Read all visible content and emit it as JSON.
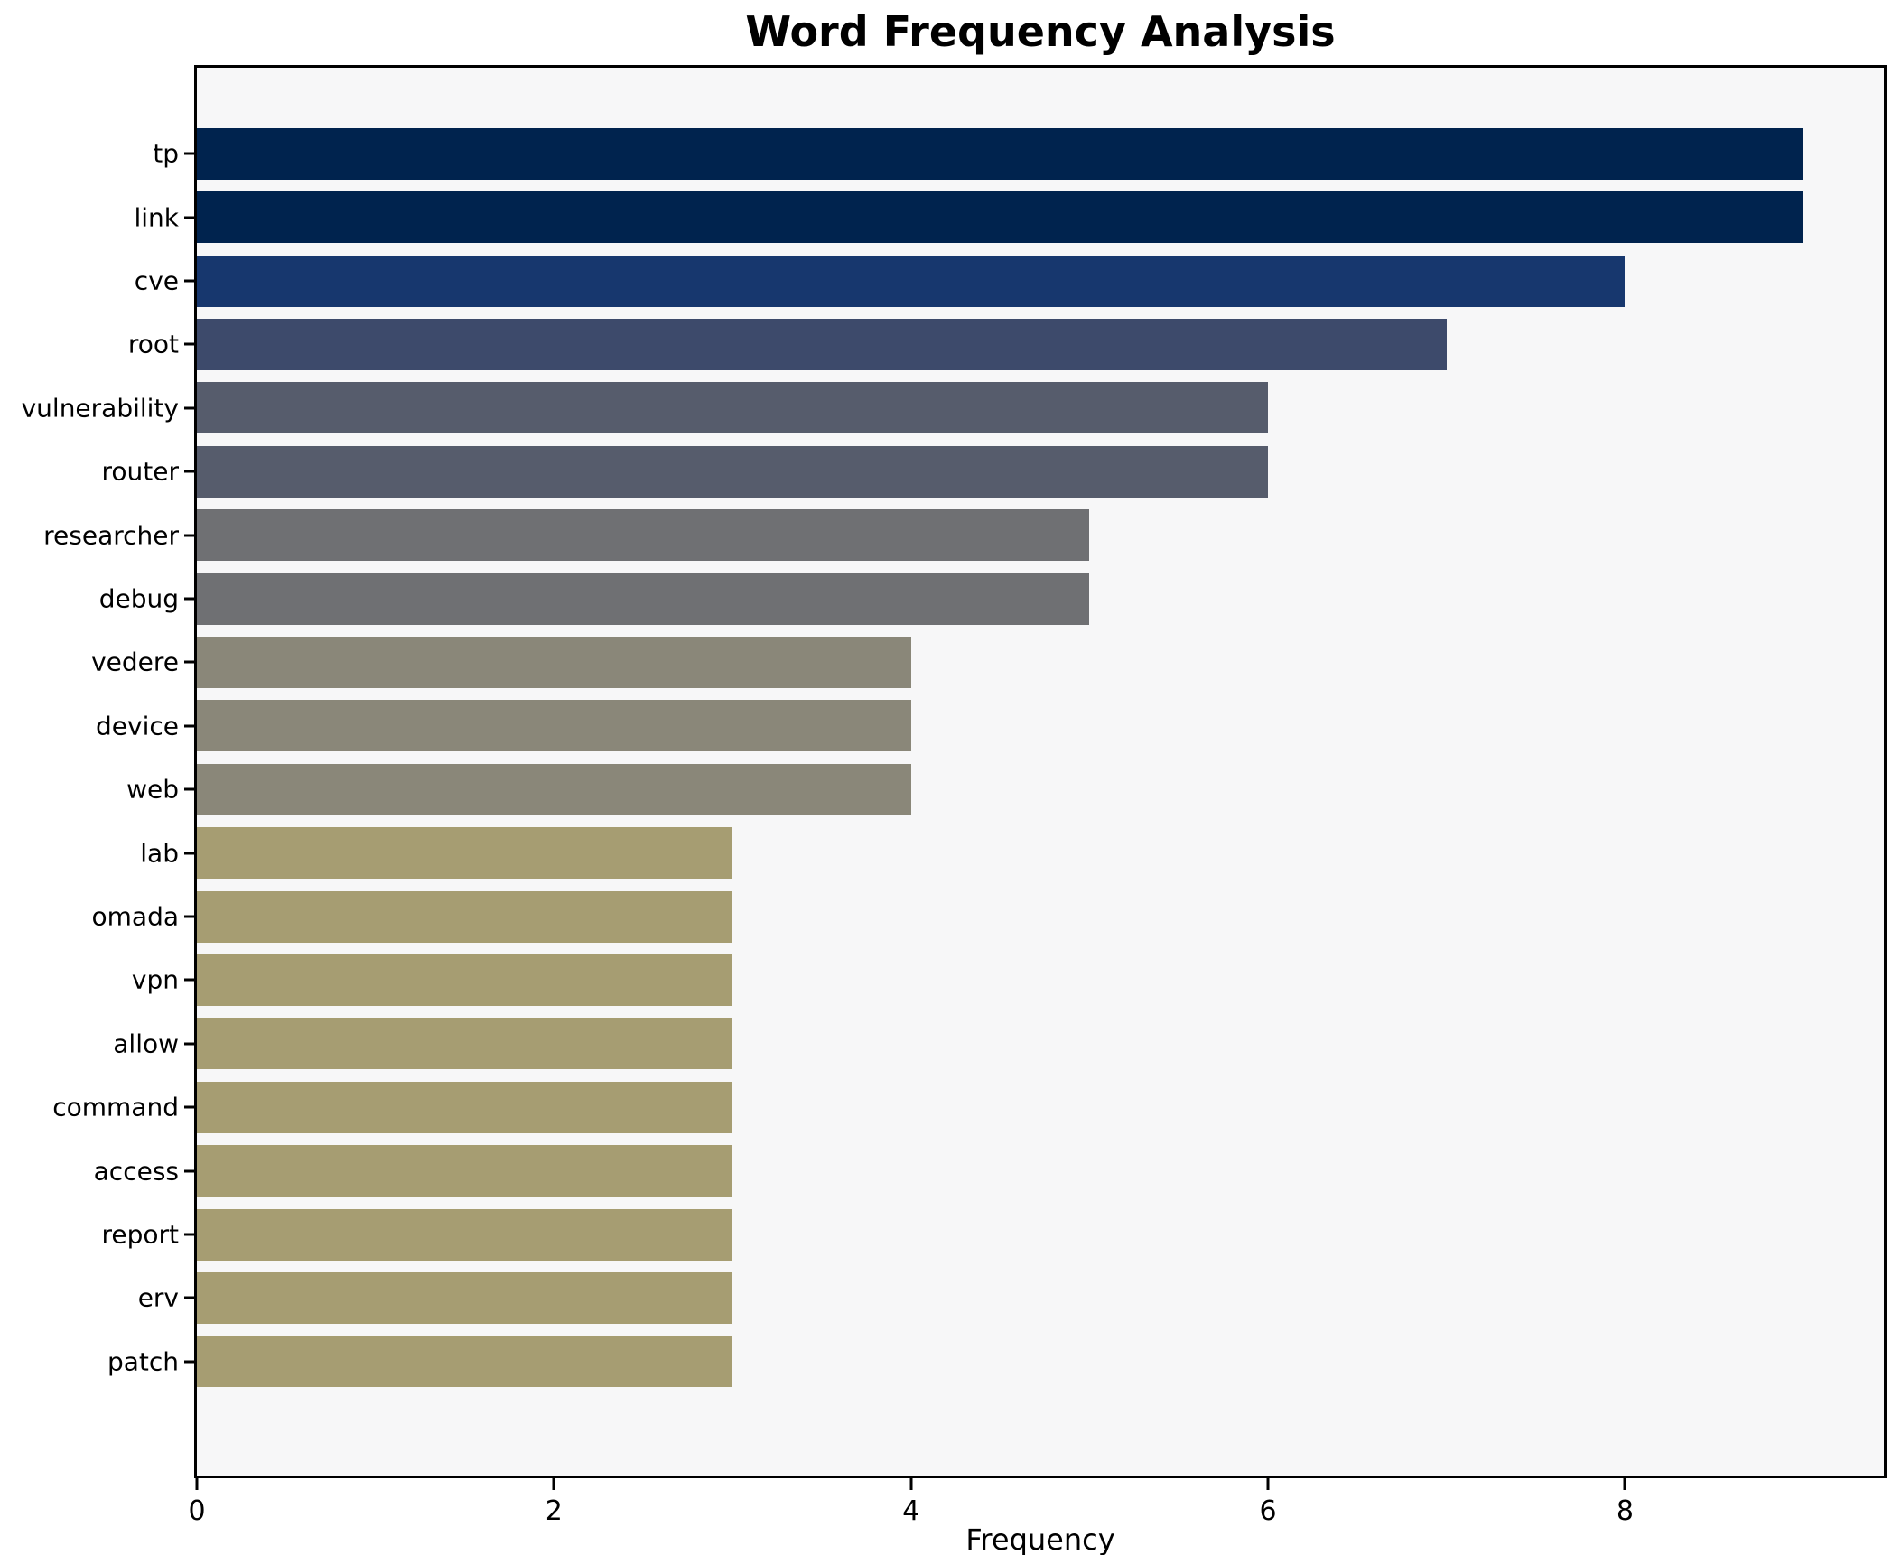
{
  "chart_data": {
    "type": "bar",
    "orientation": "horizontal",
    "title": "Word Frequency Analysis",
    "xlabel": "Frequency",
    "ylabel": "",
    "categories": [
      "tp",
      "link",
      "cve",
      "root",
      "vulnerability",
      "router",
      "researcher",
      "debug",
      "vedere",
      "device",
      "web",
      "lab",
      "omada",
      "vpn",
      "allow",
      "command",
      "access",
      "report",
      "erv",
      "patch"
    ],
    "values": [
      9,
      9,
      8,
      7,
      6,
      6,
      5,
      5,
      4,
      4,
      4,
      3,
      3,
      3,
      3,
      3,
      3,
      3,
      3,
      3
    ],
    "bar_colors": [
      "#00234e",
      "#00234e",
      "#17376e",
      "#3d4a6b",
      "#565c6c",
      "#565c6c",
      "#6f7073",
      "#6f7073",
      "#8a8779",
      "#8a8779",
      "#8a8779",
      "#a69d72",
      "#a69d72",
      "#a69d72",
      "#a69d72",
      "#a69d72",
      "#a69d72",
      "#a69d72",
      "#a69d72",
      "#a69d72"
    ],
    "xlim": [
      0,
      9.45
    ],
    "x_ticks": [
      0,
      2,
      4,
      6,
      8
    ],
    "grid": false,
    "legend": null,
    "plot_background": "#f7f7f8",
    "figure_background": "#ffffff",
    "spine_color": "#000000"
  }
}
